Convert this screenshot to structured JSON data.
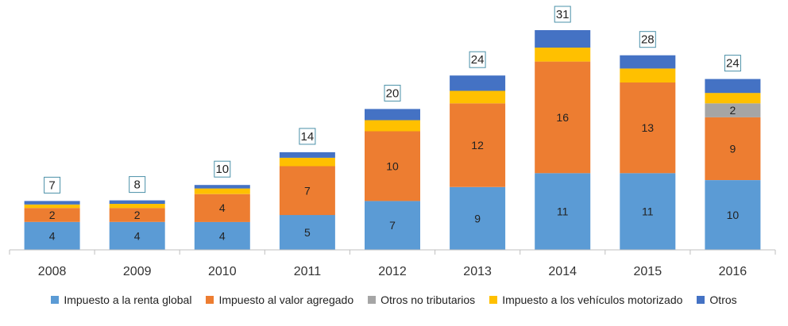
{
  "chart_data": {
    "type": "bar",
    "stacked": true,
    "categories": [
      "2008",
      "2009",
      "2010",
      "2011",
      "2012",
      "2013",
      "2014",
      "2015",
      "2016"
    ],
    "series": [
      {
        "name": "Impuesto a la renta global",
        "color": "#5B9BD5",
        "values": [
          4,
          4,
          4,
          5,
          7,
          9,
          11,
          11,
          10
        ],
        "labels": [
          "4",
          "4",
          "4",
          "5",
          "7",
          "9",
          "11",
          "11",
          "10"
        ]
      },
      {
        "name": "Impuesto al valor agregado",
        "color": "#ED7D31",
        "values": [
          2,
          2,
          4,
          7,
          10,
          12,
          16,
          13,
          9
        ],
        "labels": [
          "2",
          "2",
          "4",
          "7",
          "10",
          "12",
          "16",
          "13",
          "9"
        ]
      },
      {
        "name": "Otros no tributarios",
        "color": "#A5A5A5",
        "values": [
          0,
          0,
          0,
          0,
          0,
          0,
          0,
          0,
          2
        ],
        "labels": [
          "",
          "",
          "",
          "",
          "",
          "",
          "",
          "",
          "2"
        ]
      },
      {
        "name": "Impuesto a los vehículos motorizado",
        "color": "#FFC000",
        "values": [
          0.5,
          0.6,
          0.8,
          1.2,
          1.6,
          1.8,
          2.0,
          2.0,
          1.5
        ],
        "labels": [
          "",
          "",
          "",
          "",
          "",
          "",
          "",
          "",
          ""
        ]
      },
      {
        "name": "Otros",
        "color": "#4472C4",
        "values": [
          0.5,
          0.5,
          0.5,
          0.8,
          1.6,
          2.2,
          2.5,
          1.9,
          2.0
        ],
        "labels": [
          "",
          "",
          "",
          "",
          "",
          "",
          "",
          "",
          ""
        ]
      }
    ],
    "totals": [
      "7",
      "8",
      "10",
      "14",
      "20",
      "24",
      "31",
      "28",
      "24"
    ],
    "ylim": [
      0,
      31.5
    ],
    "legend_position": "bottom",
    "grid": false
  }
}
